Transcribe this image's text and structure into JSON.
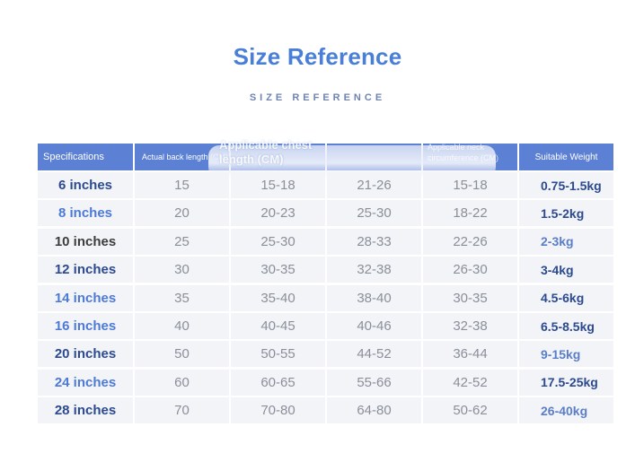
{
  "title": "Size Reference",
  "subtitle": "SIZE REFERENCE",
  "header": {
    "specifications": "Specifications",
    "back_length": "Actual back length (CM)",
    "chest_overlay": "Applicable chest length (CM)",
    "neck_overlay": "Applicable neck circumference (CM)",
    "weight": "Suitable Weight"
  },
  "colors": {
    "title": "#4a7fd8",
    "header_bg": "#5c80d4",
    "row_bg": "#f3f4f8",
    "spec_dark": "#2c4a8f",
    "spec_blue": "#4d7ad6",
    "spec_gray": "#3d3d3d",
    "weight_blue": "#5a7ec9"
  },
  "rows": [
    {
      "spec": "6 inches",
      "back": "15",
      "chest": "15-18",
      "c3": "21-26",
      "neck": "15-18",
      "weight": "0.75-1.5kg"
    },
    {
      "spec": "8 inches",
      "back": "20",
      "chest": "20-23",
      "c3": "25-30",
      "neck": "18-22",
      "weight": "1.5-2kg"
    },
    {
      "spec": "10 inches",
      "back": "25",
      "chest": "25-30",
      "c3": "28-33",
      "neck": "22-26",
      "weight": "2-3kg"
    },
    {
      "spec": "12 inches",
      "back": "30",
      "chest": "30-35",
      "c3": "32-38",
      "neck": "26-30",
      "weight": "3-4kg"
    },
    {
      "spec": "14 inches",
      "back": "35",
      "chest": "35-40",
      "c3": "38-40",
      "neck": "30-35",
      "weight": "4.5-6kg"
    },
    {
      "spec": "16 inches",
      "back": "40",
      "chest": "40-45",
      "c3": "40-46",
      "neck": "32-38",
      "weight": "6.5-8.5kg"
    },
    {
      "spec": "20 inches",
      "back": "50",
      "chest": "50-55",
      "c3": "44-52",
      "neck": "36-44",
      "weight": "9-15kg"
    },
    {
      "spec": "24 inches",
      "back": "60",
      "chest": "60-65",
      "c3": "55-66",
      "neck": "42-52",
      "weight": "17.5-25kg"
    },
    {
      "spec": "28 inches",
      "back": "70",
      "chest": "70-80",
      "c3": "64-80",
      "neck": "50-62",
      "weight": "26-40kg"
    }
  ]
}
